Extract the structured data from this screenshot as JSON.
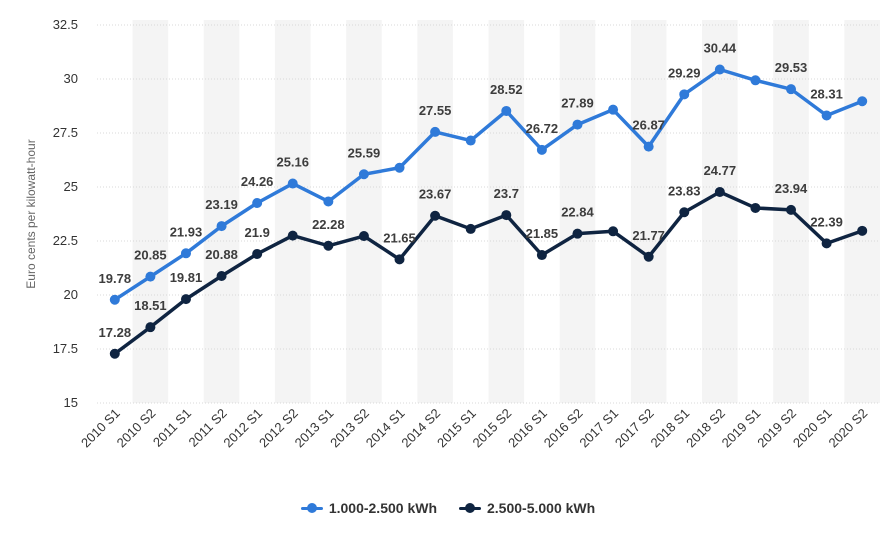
{
  "chart_data": {
    "type": "line",
    "categories": [
      "2010 S1",
      "2010 S2",
      "2011 S1",
      "2011 S2",
      "2012 S1",
      "2012 S2",
      "2013 S1",
      "2013 S2",
      "2014 S1",
      "2014 S2",
      "2015 S1",
      "2015 S2",
      "2016 S1",
      "2016 S2",
      "2017 S1",
      "2017 S2",
      "2018 S1",
      "2018 S2",
      "2019 S1",
      "2019 S2",
      "2020 S1",
      "2020 S2"
    ],
    "series": [
      {
        "name": "1.000-2.500 kWh",
        "color": "#2f7ad9",
        "values": [
          19.78,
          20.85,
          21.93,
          23.19,
          24.26,
          25.16,
          24.33,
          25.59,
          25.89,
          27.55,
          27.15,
          28.52,
          26.72,
          27.89,
          28.58,
          26.87,
          29.29,
          30.44,
          29.94,
          29.53,
          28.31,
          28.97
        ],
        "labels": [
          "19.78",
          "20.85",
          "21.93",
          "23.19",
          "24.26",
          "25.16",
          "",
          "25.59",
          "",
          "27.55",
          "",
          "28.52",
          "26.72",
          "27.89",
          "",
          "26.87",
          "29.29",
          "30.44",
          "",
          "29.53",
          "28.31",
          ""
        ]
      },
      {
        "name": "2.500-5.000 kWh",
        "color": "#0f2441",
        "values": [
          17.28,
          18.51,
          19.81,
          20.88,
          21.9,
          22.75,
          22.28,
          22.73,
          21.65,
          23.67,
          23.06,
          23.7,
          21.85,
          22.84,
          22.95,
          21.77,
          23.83,
          24.77,
          24.03,
          23.94,
          22.39,
          22.97
        ],
        "labels": [
          "17.28",
          "18.51",
          "19.81",
          "20.88",
          "21.9",
          "",
          "22.28",
          "",
          "21.65",
          "23.67",
          "",
          "23.7",
          "21.85",
          "22.84",
          "",
          "21.77",
          "23.83",
          "24.77",
          "",
          "23.94",
          "22.39",
          ""
        ]
      }
    ],
    "ylabel": "Euro cents per kilowatt-hour",
    "xlabel": "",
    "ylim": [
      15,
      32.5
    ],
    "yticks": [
      "15",
      "17.5",
      "20",
      "22.5",
      "25",
      "27.5",
      "30",
      "32.5"
    ],
    "grid": true
  },
  "legend": {
    "items": [
      {
        "label": "1.000-2.500 kWh",
        "color": "#2f7ad9"
      },
      {
        "label": "2.500-5.000 kWh",
        "color": "#0f2441"
      }
    ]
  }
}
